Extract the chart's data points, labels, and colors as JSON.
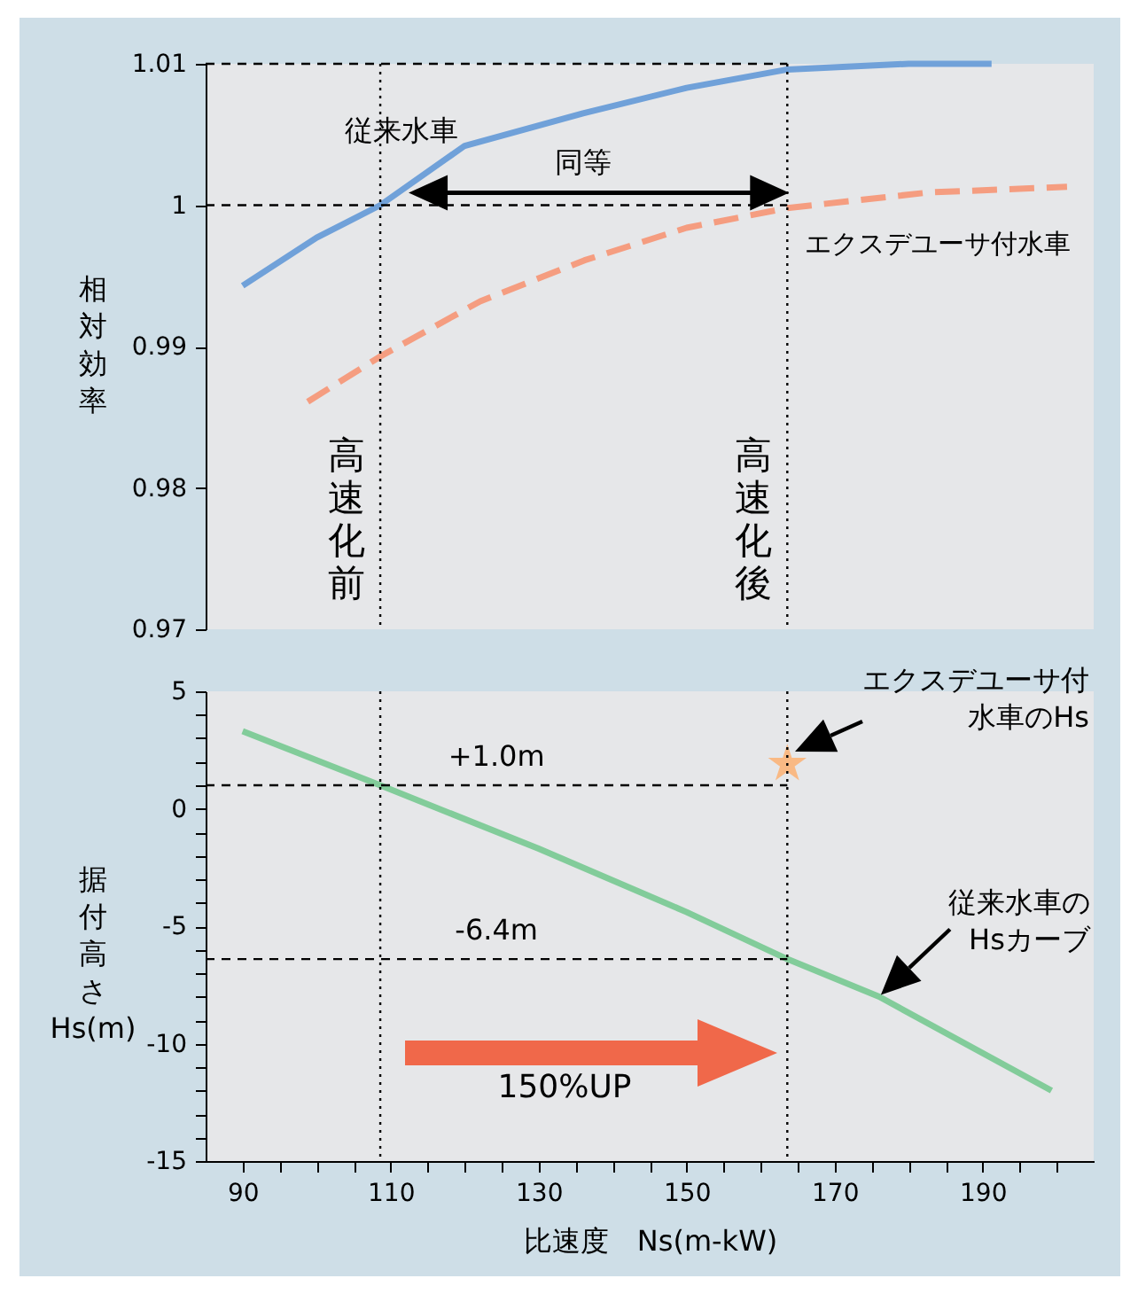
{
  "chart_data": [
    {
      "type": "line",
      "ylabel": "相対効率",
      "xlim": [
        85,
        205
      ],
      "ylim": [
        0.97,
        1.01
      ],
      "yticks": [
        0.97,
        0.98,
        0.99,
        1,
        1.01
      ],
      "tick_labels": "y",
      "grid": false,
      "series": [
        {
          "name": "従来水車",
          "color": "#70a1d9",
          "line_style": "solid",
          "x": [
            90,
            100,
            108.6,
            120,
            136,
            150,
            163.6,
            180,
            191.2
          ],
          "values": [
            0.9943,
            0.9977,
            1.0,
            1.0042,
            1.0065,
            1.0083,
            1.0096,
            1.01,
            1.01
          ]
        },
        {
          "name": "エクスデユーサ付水車",
          "color": "#f59d80",
          "line_style": "dashed",
          "x": [
            98.8,
            108.6,
            122.1,
            136.2,
            150,
            163.6,
            182.7,
            201.4
          ],
          "values": [
            0.9861,
            0.9893,
            0.9932,
            0.9961,
            0.9984,
            0.9998,
            1.0009,
            1.0013
          ]
        }
      ],
      "ref_lines": [
        {
          "axis": "y",
          "value": 1.01,
          "line_style": "dashed"
        },
        {
          "axis": "y",
          "value": 1,
          "line_style": "dashed"
        },
        {
          "axis": "x",
          "value": 108.6,
          "label": "高速化前",
          "line_style": "dotted"
        },
        {
          "axis": "x",
          "value": 163.6,
          "label": "高速化後",
          "line_style": "dotted"
        }
      ],
      "annotations": [
        {
          "text": "同等",
          "x": 136,
          "y": 1
        }
      ]
    },
    {
      "type": "line",
      "xlabel": "比速度　Ns(m-kW)",
      "ylabel": "据付高さHs(m)",
      "xlim": [
        85,
        205
      ],
      "ylim": [
        -15,
        5
      ],
      "xticks": [
        90,
        {
          "value": 95,
          "label": null
        },
        {
          "value": 100,
          "label": null
        },
        {
          "value": 105,
          "label": null
        },
        110,
        {
          "value": 115,
          "label": null
        },
        {
          "value": 120,
          "label": null
        },
        {
          "value": 125,
          "label": null
        },
        130,
        {
          "value": 135,
          "label": null
        },
        {
          "value": 140,
          "label": null
        },
        {
          "value": 145,
          "label": null
        },
        150,
        {
          "value": 155,
          "label": null
        },
        {
          "value": 160,
          "label": null
        },
        {
          "value": 165,
          "label": null
        },
        170,
        {
          "value": 175,
          "label": null
        },
        {
          "value": 180,
          "label": null
        },
        {
          "value": 185,
          "label": null
        },
        190,
        {
          "value": 195,
          "label": null
        },
        {
          "value": 200,
          "label": null
        }
      ],
      "yticks": [
        -15,
        {
          "value": -14,
          "label": null
        },
        {
          "value": -13,
          "label": null
        },
        {
          "value": -12,
          "label": null
        },
        {
          "value": -11,
          "label": null
        },
        -10,
        {
          "value": -9,
          "label": null
        },
        {
          "value": -8,
          "label": null
        },
        {
          "value": -7,
          "label": null
        },
        {
          "value": -6,
          "label": null
        },
        -5,
        {
          "value": -4,
          "label": null
        },
        {
          "value": -3,
          "label": null
        },
        {
          "value": -2,
          "label": null
        },
        {
          "value": -1,
          "label": null
        },
        0,
        {
          "value": 1,
          "label": null
        },
        {
          "value": 2,
          "label": null
        },
        {
          "value": 3,
          "label": null
        },
        {
          "value": 4,
          "label": null
        },
        5
      ],
      "grid": false,
      "series": [
        {
          "color": "#82cc9a",
          "line_style": "solid",
          "x": [
            90,
            108.6,
            130,
            150,
            163.6,
            176,
            199.3
          ],
          "values": [
            3.3,
            1.0,
            -1.7,
            -4.4,
            -6.4,
            -8.0,
            -12.0
          ]
        },
        {
          "type": "scatter",
          "marker": "star",
          "color": "#f9b984",
          "x": [
            163.6
          ],
          "values": [
            1.9
          ]
        }
      ],
      "ref_lines": [
        {
          "axis": "x",
          "value": 108.6,
          "line_style": "dotted"
        },
        {
          "axis": "x",
          "value": 163.6,
          "line_style": "dotted"
        },
        {
          "axis": "y",
          "value": 1.0,
          "label": "+1.0m",
          "line_style": "dashed"
        },
        {
          "axis": "y",
          "value": -6.4,
          "label": "-6.4m",
          "line_style": "dashed"
        }
      ],
      "annotations": [
        "150%UP",
        "エクスデユーサ付水車のHs",
        {
          "text": "従来水車のHsカーブ",
          "x": 176,
          "y": -8.0
        }
      ]
    }
  ]
}
